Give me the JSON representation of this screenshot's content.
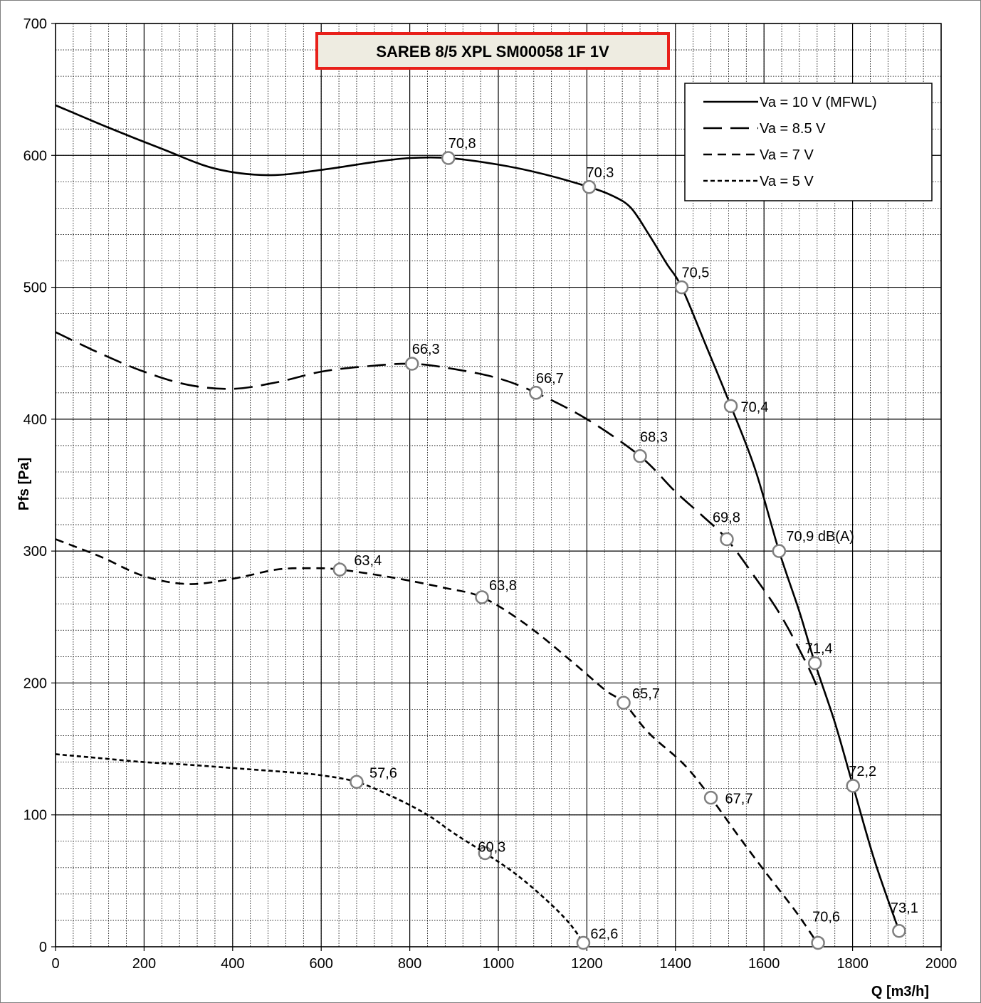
{
  "chart_data": {
    "type": "line",
    "title": "SAREB 8/5 XPL SM00058 1F 1V",
    "xlabel": "Q [m3/h]",
    "ylabel": "Pfs [Pa]",
    "xlim": [
      0,
      2000
    ],
    "ylim": [
      0,
      700
    ],
    "x_ticks": [
      "0",
      "200",
      "400",
      "600",
      "800",
      "1000",
      "1200",
      "1400",
      "1600",
      "1800",
      "2000"
    ],
    "y_ticks": [
      "0",
      "100",
      "200",
      "300",
      "400",
      "500",
      "600",
      "700"
    ],
    "grid": true,
    "legend_position": "top-right",
    "colors": {
      "title_border": "#e8201a",
      "title_fill": "#eeece1",
      "line": "#000000",
      "marker_fill": "#ffffff",
      "marker_stroke": "#7f7f7f"
    },
    "series": [
      {
        "name": "Va = 10 V (MFWL)",
        "style": "solid",
        "curve": [
          [
            0,
            638
          ],
          [
            120,
            621
          ],
          [
            240,
            605
          ],
          [
            360,
            590
          ],
          [
            480,
            585
          ],
          [
            600,
            589
          ],
          [
            720,
            595
          ],
          [
            800,
            598
          ],
          [
            887,
            598
          ],
          [
            1000,
            593
          ],
          [
            1100,
            586
          ],
          [
            1205,
            576
          ],
          [
            1260,
            569
          ],
          [
            1300,
            560
          ],
          [
            1340,
            540
          ],
          [
            1380,
            518
          ],
          [
            1414,
            500
          ],
          [
            1470,
            455
          ],
          [
            1525,
            410
          ],
          [
            1580,
            362
          ],
          [
            1634,
            300
          ],
          [
            1680,
            254
          ],
          [
            1715,
            215
          ],
          [
            1760,
            170
          ],
          [
            1801,
            122
          ],
          [
            1850,
            65
          ],
          [
            1905,
            12
          ]
        ],
        "points": [
          {
            "x": 887,
            "y": 598,
            "label": "70,8"
          },
          {
            "x": 1205,
            "y": 576,
            "label": "70,3"
          },
          {
            "x": 1414,
            "y": 500,
            "label": "70,5"
          },
          {
            "x": 1525,
            "y": 410,
            "label": "70,4"
          },
          {
            "x": 1634,
            "y": 300,
            "label": "70,9 dB(A)"
          },
          {
            "x": 1715,
            "y": 215,
            "label": "71,4"
          },
          {
            "x": 1801,
            "y": 122,
            "label": "72,2"
          },
          {
            "x": 1905,
            "y": 12,
            "label": "73,1"
          }
        ]
      },
      {
        "name": "Va = 8.5 V",
        "style": "long-dash",
        "curve": [
          [
            0,
            466
          ],
          [
            100,
            450
          ],
          [
            200,
            436
          ],
          [
            300,
            426
          ],
          [
            400,
            423
          ],
          [
            500,
            428
          ],
          [
            600,
            436
          ],
          [
            700,
            440
          ],
          [
            805,
            442
          ],
          [
            900,
            438
          ],
          [
            1000,
            431
          ],
          [
            1085,
            420
          ],
          [
            1200,
            400
          ],
          [
            1320,
            372
          ],
          [
            1400,
            345
          ],
          [
            1460,
            327
          ],
          [
            1516,
            309
          ],
          [
            1580,
            280
          ],
          [
            1640,
            250
          ],
          [
            1700,
            212
          ],
          [
            1722,
            195
          ]
        ],
        "points": [
          {
            "x": 805,
            "y": 442,
            "label": "66,3"
          },
          {
            "x": 1085,
            "y": 420,
            "label": "66,7"
          },
          {
            "x": 1320,
            "y": 372,
            "label": "68,3"
          },
          {
            "x": 1516,
            "y": 309,
            "label": "69,8"
          }
        ]
      },
      {
        "name": "Va = 7 V",
        "style": "dash",
        "curve": [
          [
            0,
            309
          ],
          [
            100,
            296
          ],
          [
            200,
            281
          ],
          [
            300,
            275
          ],
          [
            400,
            279
          ],
          [
            500,
            286
          ],
          [
            580,
            287
          ],
          [
            642,
            286
          ],
          [
            760,
            280
          ],
          [
            880,
            272
          ],
          [
            963,
            265
          ],
          [
            1060,
            245
          ],
          [
            1160,
            218
          ],
          [
            1240,
            195
          ],
          [
            1283,
            185
          ],
          [
            1340,
            162
          ],
          [
            1420,
            138
          ],
          [
            1480,
            113
          ],
          [
            1540,
            85
          ],
          [
            1600,
            58
          ],
          [
            1660,
            32
          ],
          [
            1690,
            18
          ],
          [
            1720,
            3
          ]
        ],
        "points": [
          {
            "x": 642,
            "y": 286,
            "label": "63,4"
          },
          {
            "x": 963,
            "y": 265,
            "label": "63,8"
          },
          {
            "x": 1283,
            "y": 185,
            "label": "65,7"
          },
          {
            "x": 1480,
            "y": 113,
            "label": "67,7"
          },
          {
            "x": 1722,
            "y": 3,
            "label": "70,6"
          }
        ]
      },
      {
        "name": "Va = 5 V",
        "style": "short-dash",
        "curve": [
          [
            0,
            146
          ],
          [
            100,
            143
          ],
          [
            200,
            140
          ],
          [
            300,
            138
          ],
          [
            420,
            135
          ],
          [
            540,
            132
          ],
          [
            600,
            130
          ],
          [
            680,
            125
          ],
          [
            760,
            114
          ],
          [
            840,
            100
          ],
          [
            900,
            86
          ],
          [
            970,
            71
          ],
          [
            1040,
            55
          ],
          [
            1110,
            35
          ],
          [
            1160,
            18
          ],
          [
            1192,
            3
          ]
        ],
        "points": [
          {
            "x": 680,
            "y": 125,
            "label": "57,6"
          },
          {
            "x": 970,
            "y": 71,
            "label": "60,3"
          },
          {
            "x": 1192,
            "y": 3,
            "label": "62,6"
          }
        ]
      }
    ]
  }
}
